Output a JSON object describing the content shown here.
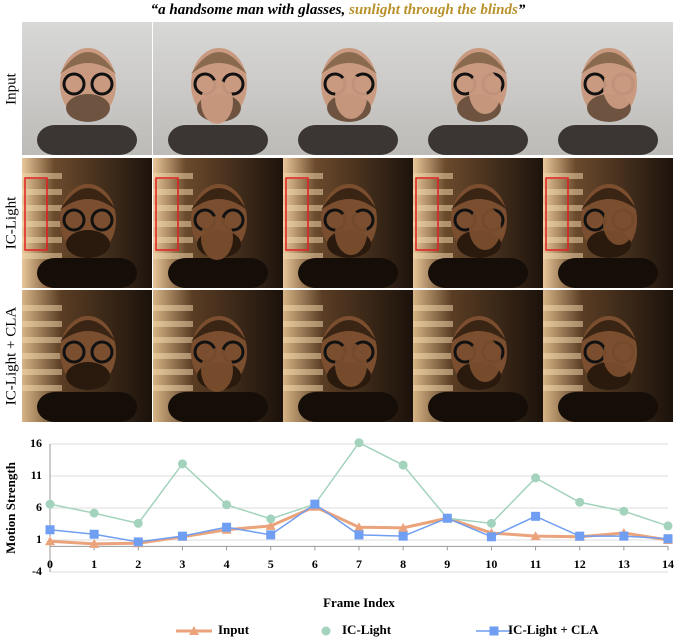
{
  "title": [
    "“a  handsome man with glasses,",
    "sunlight through the blinds",
    "”"
  ],
  "row_labels": [
    "Input",
    "IC-Light",
    "IC-Light + CLA"
  ],
  "chart_data": {
    "type": "line",
    "x_label": "Frame Index",
    "y_label": "Motion Strength",
    "x": [
      0,
      1,
      2,
      3,
      4,
      5,
      6,
      7,
      8,
      9,
      10,
      11,
      12,
      13,
      14
    ],
    "xlim": [
      0,
      14
    ],
    "xticks": [
      0,
      1,
      2,
      3,
      4,
      5,
      6,
      7,
      8,
      9,
      10,
      11,
      12,
      13,
      14
    ],
    "ylim": [
      -4,
      16
    ],
    "yticks": [
      -4,
      1,
      6,
      11,
      16
    ],
    "grid": true,
    "series": [
      {
        "name": "Input",
        "color": "#eba37c",
        "marker": "triangle",
        "values": [
          0.8,
          0.4,
          0.5,
          1.5,
          2.6,
          3.2,
          6.2,
          3.0,
          2.9,
          4.4,
          2.1,
          1.6,
          1.5,
          2.1,
          1.0
        ]
      },
      {
        "name": "IC-Light",
        "color": "#a3d3bc",
        "marker": "circle",
        "values": [
          6.6,
          5.2,
          3.6,
          12.9,
          6.5,
          4.3,
          6.6,
          16.2,
          12.7,
          4.4,
          3.6,
          10.7,
          6.9,
          5.5,
          3.2
        ]
      },
      {
        "name": "IC-Light + CLA",
        "color": "#6f9ef2",
        "marker": "square",
        "values": [
          2.6,
          1.9,
          0.7,
          1.6,
          3.0,
          1.8,
          6.6,
          1.8,
          1.6,
          4.4,
          1.5,
          4.7,
          1.6,
          1.6,
          1.2
        ]
      }
    ]
  }
}
